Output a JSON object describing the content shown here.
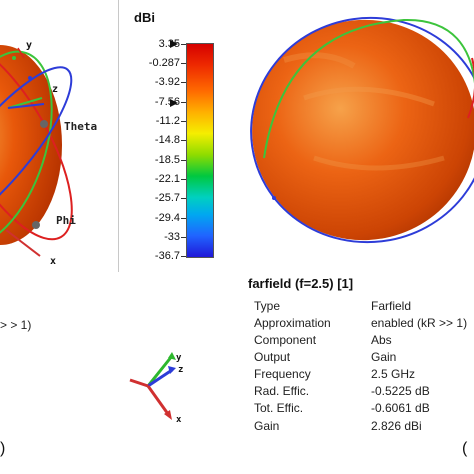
{
  "colorbar": {
    "unit": "dBi",
    "ticks": [
      "3.35",
      "-0.287",
      "-3.92",
      "-7.56",
      "-11.2",
      "-14.8",
      "-18.5",
      "-22.1",
      "-25.7",
      "-29.4",
      "-33",
      "-36.7"
    ]
  },
  "left_view": {
    "axis_y": "y",
    "axis_z": "z",
    "axis_x": "x",
    "label_theta": "Theta",
    "label_phi": "Phi"
  },
  "left_text": {
    "fragment": "> > 1)",
    "paren": ")"
  },
  "right_text": {
    "paren": "("
  },
  "info": {
    "title": "farfield (f=2.5) [1]",
    "rows": [
      {
        "label": "Type",
        "value": "Farfield"
      },
      {
        "label": "Approximation",
        "value": "enabled (kR >> 1)"
      },
      {
        "label": "Component",
        "value": "Abs"
      },
      {
        "label": "Output",
        "value": "Gain"
      },
      {
        "label": "Frequency",
        "value": "2.5 GHz"
      },
      {
        "label": "Rad. Effic.",
        "value": "-0.5225 dB"
      },
      {
        "label": "Tot. Effic.",
        "value": "-0.6061 dB"
      },
      {
        "label": "Gain",
        "value": "2.826 dBi"
      }
    ]
  },
  "colors": {
    "pattern_fill": "#e8580a",
    "ring_green": "#3cc43c",
    "ring_blue": "#2d3cd8",
    "ring_red": "#dd2020",
    "axis_arrow": "#d03030"
  }
}
